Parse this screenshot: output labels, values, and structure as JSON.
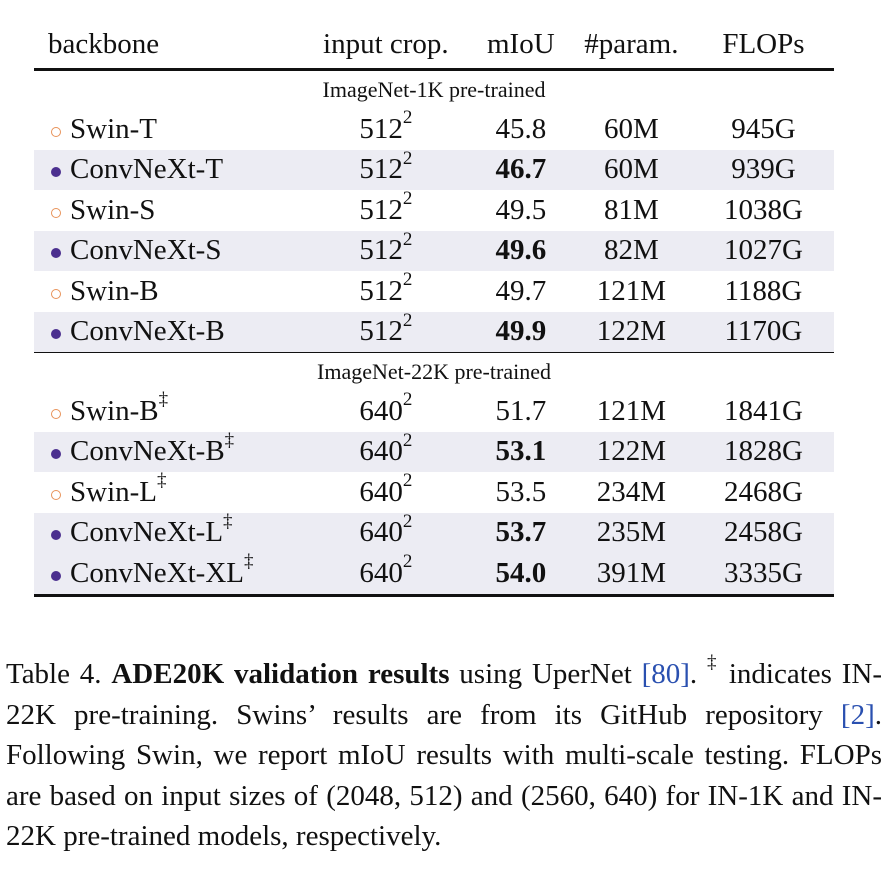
{
  "table": {
    "headers": {
      "backbone": "backbone",
      "crop": "input crop.",
      "miou": "mIoU",
      "param": "#param.",
      "flops": "FLOPs"
    },
    "groups": [
      {
        "label": "ImageNet-1K pre-trained",
        "rows": [
          {
            "marker": "open",
            "name": "Swin-T",
            "dagger": "",
            "crop_base": "512",
            "crop_exp": "2",
            "miou": "45.8",
            "miou_bold": false,
            "param": "60M",
            "flops": "945G",
            "shaded": false
          },
          {
            "marker": "filled",
            "name": "ConvNeXt-T",
            "dagger": "",
            "crop_base": "512",
            "crop_exp": "2",
            "miou": "46.7",
            "miou_bold": true,
            "param": "60M",
            "flops": "939G",
            "shaded": true
          },
          {
            "marker": "open",
            "name": "Swin-S",
            "dagger": "",
            "crop_base": "512",
            "crop_exp": "2",
            "miou": "49.5",
            "miou_bold": false,
            "param": "81M",
            "flops": "1038G",
            "shaded": false
          },
          {
            "marker": "filled",
            "name": "ConvNeXt-S",
            "dagger": "",
            "crop_base": "512",
            "crop_exp": "2",
            "miou": "49.6",
            "miou_bold": true,
            "param": "82M",
            "flops": "1027G",
            "shaded": true
          },
          {
            "marker": "open",
            "name": "Swin-B",
            "dagger": "",
            "crop_base": "512",
            "crop_exp": "2",
            "miou": "49.7",
            "miou_bold": false,
            "param": "121M",
            "flops": "1188G",
            "shaded": false
          },
          {
            "marker": "filled",
            "name": "ConvNeXt-B",
            "dagger": "",
            "crop_base": "512",
            "crop_exp": "2",
            "miou": "49.9",
            "miou_bold": true,
            "param": "122M",
            "flops": "1170G",
            "shaded": true
          }
        ]
      },
      {
        "label": "ImageNet-22K pre-trained",
        "rows": [
          {
            "marker": "open",
            "name": "Swin-B",
            "dagger": "‡",
            "crop_base": "640",
            "crop_exp": "2",
            "miou": "51.7",
            "miou_bold": false,
            "param": "121M",
            "flops": "1841G",
            "shaded": false
          },
          {
            "marker": "filled",
            "name": "ConvNeXt-B",
            "dagger": "‡",
            "crop_base": "640",
            "crop_exp": "2",
            "miou": "53.1",
            "miou_bold": true,
            "param": "122M",
            "flops": "1828G",
            "shaded": true
          },
          {
            "marker": "open",
            "name": "Swin-L",
            "dagger": "‡",
            "crop_base": "640",
            "crop_exp": "2",
            "miou": "53.5",
            "miou_bold": false,
            "param": "234M",
            "flops": "2468G",
            "shaded": false
          },
          {
            "marker": "filled",
            "name": "ConvNeXt-L",
            "dagger": "‡",
            "crop_base": "640",
            "crop_exp": "2",
            "miou": "53.7",
            "miou_bold": true,
            "param": "235M",
            "flops": "2458G",
            "shaded": true
          },
          {
            "marker": "filled",
            "name": "ConvNeXt-XL",
            "dagger": "‡",
            "crop_base": "640",
            "crop_exp": "2",
            "miou": "54.0",
            "miou_bold": true,
            "param": "391M",
            "flops": "3335G",
            "shaded": true
          }
        ]
      }
    ]
  },
  "caption": {
    "prefix": "Table 4.",
    "bold": "ADE20K validation results",
    "text1": " using UperNet ",
    "cite1": "[80]",
    "text2": ". ",
    "dagger": "‡",
    "text3": " indicates IN-22K pre-training. Swins’ results are from its GitHub repository ",
    "cite2": "[2]",
    "text4": ". Following Swin, we report mIoU results with multi-scale testing. FLOPs are based on input sizes of (2048, 512) and (2560, 640) for IN-1K and IN-22K pre-trained models, respectively."
  },
  "colors": {
    "swin_marker": "#e8935a",
    "convnext_marker": "#4b2f8f",
    "row_shade": "#ececf3",
    "citation": "#2a50b0"
  }
}
